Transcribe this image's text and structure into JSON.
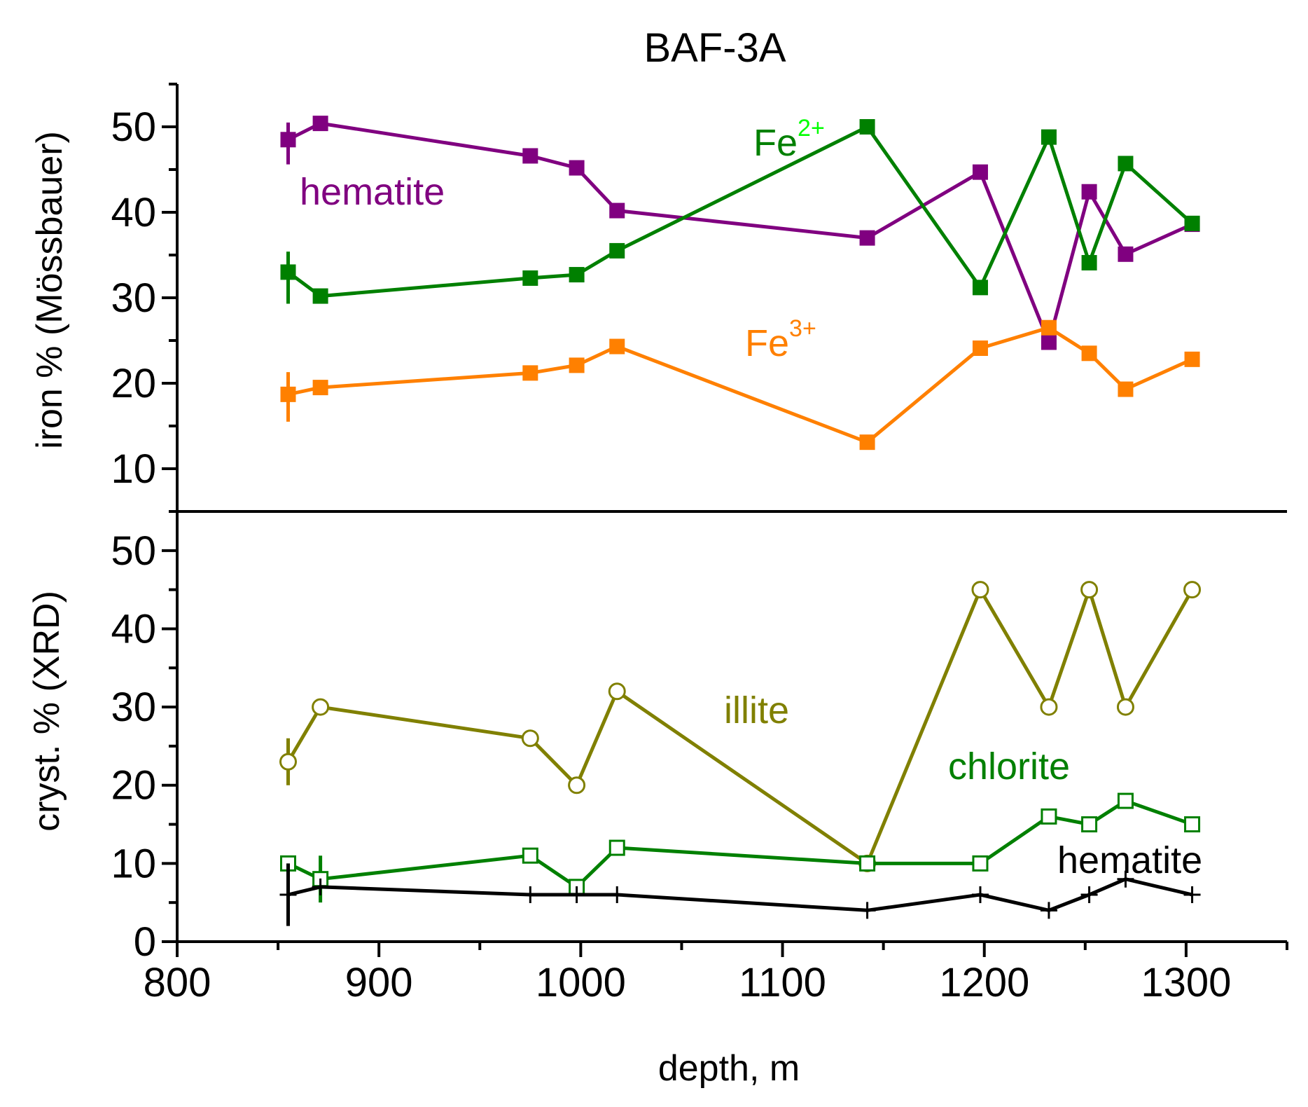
{
  "chart_data": {
    "type": "line",
    "title": "BAF-3A",
    "xlabel": "depth, m",
    "xlim": [
      800,
      1350
    ],
    "x_ticks": [
      "800",
      "900",
      "1000",
      "1100",
      "1200",
      "1300"
    ],
    "panels": [
      {
        "id": "mossbauer",
        "ylabel": "iron % (Mössbauer)",
        "ylim": [
          5,
          55
        ],
        "y_ticks": [
          "10",
          "20",
          "30",
          "40",
          "50"
        ],
        "series": [
          {
            "name": "hematite",
            "color": "#800080",
            "marker": "filled-square",
            "x": [
              855,
              871,
              975,
              998,
              1018,
              1142,
              1198,
              1232,
              1252,
              1270,
              1303
            ],
            "y": [
              48.5,
              50.4,
              46.6,
              45.2,
              40.2,
              37.0,
              44.7,
              24.8,
              42.4,
              35.1,
              38.6
            ],
            "error_bar": {
              "x": 855,
              "low": 45.6,
              "high": 50.5
            }
          },
          {
            "name": "Fe2+",
            "color": "#008000",
            "marker": "filled-square",
            "x": [
              855,
              871,
              975,
              998,
              1018,
              1142,
              1198,
              1232,
              1252,
              1270,
              1303
            ],
            "y": [
              33.0,
              30.2,
              32.3,
              32.7,
              35.5,
              50.0,
              31.2,
              48.8,
              34.1,
              45.7,
              38.7
            ],
            "error_bar": {
              "x": 855,
              "low": 29.3,
              "high": 35.4
            }
          },
          {
            "name": "Fe3+",
            "color": "#ff8000",
            "marker": "filled-square",
            "x": [
              855,
              871,
              975,
              998,
              1018,
              1142,
              1198,
              1232,
              1252,
              1270,
              1303
            ],
            "y": [
              18.7,
              19.5,
              21.2,
              22.1,
              24.3,
              13.1,
              24.1,
              26.5,
              23.5,
              19.3,
              22.8
            ],
            "error_bar": {
              "x": 855,
              "low": 15.5,
              "high": 21.3
            }
          }
        ],
        "annotations": [
          {
            "text": "hematite",
            "color": "#800080"
          },
          {
            "text": "Fe",
            "sup": "2+",
            "color": "#008000",
            "sup_color": "#00ff00"
          },
          {
            "text": "Fe",
            "sup": "3+",
            "color": "#ff8000"
          }
        ]
      },
      {
        "id": "xrd",
        "ylabel": "cryst. % (XRD)",
        "ylim": [
          0,
          55
        ],
        "y_ticks": [
          "0",
          "10",
          "20",
          "30",
          "40",
          "50"
        ],
        "series": [
          {
            "name": "illite",
            "color": "#808000",
            "marker": "open-circle",
            "x": [
              855,
              871,
              975,
              998,
              1018,
              1142,
              1198,
              1232,
              1252,
              1270,
              1303
            ],
            "y": [
              23,
              30,
              26,
              20,
              32,
              10,
              45,
              30,
              45,
              30,
              45
            ],
            "error_bar": {
              "x": 855,
              "low": 20,
              "high": 26
            }
          },
          {
            "name": "chlorite",
            "color": "#008000",
            "marker": "open-square",
            "x": [
              855,
              871,
              975,
              998,
              1018,
              1142,
              1198,
              1232,
              1252,
              1270,
              1303
            ],
            "y": [
              10,
              8,
              11,
              7,
              12,
              10,
              10,
              16,
              15,
              18,
              15
            ],
            "error_bar": {
              "x": 871,
              "low": 5,
              "high": 11
            }
          },
          {
            "name": "hematite",
            "color": "#000000",
            "marker": "plus",
            "x": [
              855,
              871,
              975,
              998,
              1018,
              1142,
              1198,
              1232,
              1252,
              1270,
              1303
            ],
            "y": [
              6,
              7,
              6,
              6,
              6,
              4,
              6,
              4,
              6,
              8,
              6
            ],
            "error_bar": {
              "x": 855,
              "low": 2,
              "high": 10
            }
          }
        ],
        "annotations": [
          {
            "text": "illite",
            "color": "#808000"
          },
          {
            "text": "chlorite",
            "color": "#008000"
          },
          {
            "text": "hematite",
            "color": "#000000"
          }
        ]
      }
    ]
  }
}
